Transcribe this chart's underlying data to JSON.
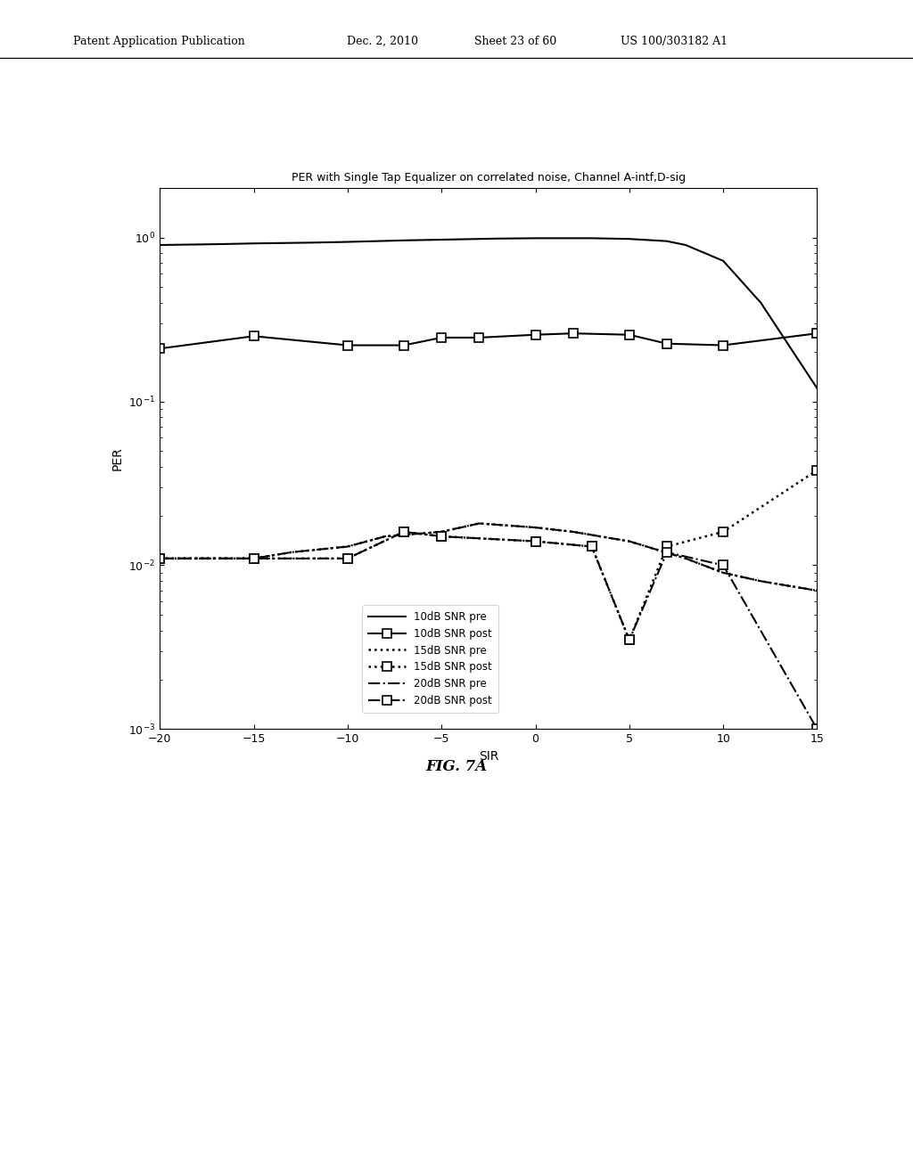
{
  "title": "PER with Single Tap Equalizer on correlated noise, Channel A-intf,D-sig",
  "xlabel": "SIR",
  "ylabel": "PER",
  "fig_caption": "FIG. 7A",
  "header_left": "Patent Application Publication",
  "header_mid": "Dec. 2, 2010",
  "header_sheet": "Sheet 23 of 60",
  "header_right": "US 100/303182 A1",
  "sir_10pre": [
    -20,
    -17,
    -15,
    -12,
    -10,
    -7,
    -5,
    -3,
    -2,
    0,
    1,
    2,
    3,
    5,
    7,
    8,
    10,
    12,
    15
  ],
  "per_10pre": [
    0.9,
    0.91,
    0.92,
    0.93,
    0.94,
    0.96,
    0.97,
    0.98,
    0.985,
    0.99,
    0.99,
    0.99,
    0.99,
    0.98,
    0.95,
    0.9,
    0.72,
    0.4,
    0.12
  ],
  "sir_10post": [
    -20,
    -15,
    -10,
    -7,
    -5,
    -3,
    0,
    2,
    5,
    7,
    10,
    15
  ],
  "per_10post": [
    0.21,
    0.25,
    0.22,
    0.22,
    0.245,
    0.245,
    0.255,
    0.26,
    0.255,
    0.225,
    0.22,
    0.26
  ],
  "sir_15pre": [
    -20,
    -17,
    -15,
    -13,
    -10,
    -8,
    -5,
    -3,
    0,
    2,
    5,
    8,
    10,
    12,
    15
  ],
  "per_15pre": [
    0.011,
    0.011,
    0.011,
    0.012,
    0.013,
    0.015,
    0.016,
    0.018,
    0.017,
    0.016,
    0.014,
    0.011,
    0.009,
    0.008,
    0.007
  ],
  "sir_15post": [
    -20,
    -15,
    -10,
    -7,
    -5,
    0,
    3,
    5,
    7,
    10,
    15
  ],
  "per_15post": [
    0.011,
    0.011,
    0.011,
    0.016,
    0.015,
    0.014,
    0.013,
    0.0035,
    0.013,
    0.016,
    0.038
  ],
  "sir_20pre": [
    -20,
    -17,
    -15,
    -13,
    -10,
    -8,
    -5,
    -3,
    0,
    2,
    5,
    8,
    10,
    12,
    15
  ],
  "per_20pre": [
    0.011,
    0.011,
    0.011,
    0.012,
    0.013,
    0.015,
    0.016,
    0.018,
    0.017,
    0.016,
    0.014,
    0.011,
    0.009,
    0.008,
    0.007
  ],
  "sir_20post": [
    -20,
    -15,
    -10,
    -7,
    -5,
    0,
    3,
    5,
    7,
    10,
    15
  ],
  "per_20post": [
    0.011,
    0.011,
    0.011,
    0.016,
    0.015,
    0.014,
    0.013,
    0.0035,
    0.012,
    0.01,
    0.001
  ]
}
